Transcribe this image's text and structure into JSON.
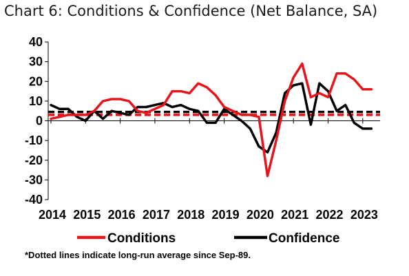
{
  "chart_data": {
    "type": "line",
    "title": "Chart 6: Conditions & Confidence (Net Balance, SA)",
    "footnote": "*Dotted lines indicate long-run average since Sep-89.",
    "ylim": [
      -40,
      40
    ],
    "yticks": [
      40,
      30,
      20,
      10,
      0,
      -10,
      -20,
      -30,
      -40
    ],
    "xlim": [
      2014,
      2023.5
    ],
    "xticks": [
      2014,
      2015,
      2016,
      2017,
      2018,
      2019,
      2020,
      2021,
      2022,
      2023
    ],
    "legend_position": "bottom",
    "grid": false,
    "series": [
      {
        "name": "Conditions",
        "color": "#e8141b",
        "x": [
          2014.0,
          2014.25,
          2014.5,
          2014.75,
          2015.0,
          2015.25,
          2015.5,
          2015.75,
          2016.0,
          2016.25,
          2016.5,
          2016.75,
          2017.0,
          2017.25,
          2017.5,
          2017.75,
          2018.0,
          2018.25,
          2018.5,
          2018.75,
          2019.0,
          2019.25,
          2019.5,
          2019.75,
          2020.0,
          2020.25,
          2020.5,
          2020.75,
          2021.0,
          2021.25,
          2021.5,
          2021.75,
          2022.0,
          2022.25,
          2022.5,
          2022.75,
          2023.0,
          2023.25
        ],
        "values": [
          1,
          2,
          3,
          3,
          3,
          5,
          10,
          11,
          11,
          10,
          5,
          4,
          6,
          8,
          15,
          15,
          14,
          19,
          17,
          13,
          7,
          5,
          3,
          3,
          2,
          -28,
          -10,
          10,
          22,
          29,
          12,
          14,
          12,
          24,
          24,
          21,
          16,
          16
        ]
      },
      {
        "name": "Confidence",
        "color": "#000000",
        "x": [
          2014.0,
          2014.25,
          2014.5,
          2014.75,
          2015.0,
          2015.25,
          2015.5,
          2015.75,
          2016.0,
          2016.25,
          2016.5,
          2016.75,
          2017.0,
          2017.25,
          2017.5,
          2017.75,
          2018.0,
          2018.25,
          2018.5,
          2018.75,
          2019.0,
          2019.25,
          2019.5,
          2019.75,
          2020.0,
          2020.25,
          2020.5,
          2020.75,
          2021.0,
          2021.25,
          2021.5,
          2021.75,
          2022.0,
          2022.25,
          2022.5,
          2022.75,
          2023.0,
          2023.25
        ],
        "values": [
          8,
          6,
          6,
          2,
          0,
          5,
          1,
          5,
          4,
          3,
          7,
          7,
          8,
          9,
          7,
          8,
          6,
          5,
          -1,
          -1,
          6,
          3,
          0,
          -4,
          -13,
          -16,
          -6,
          14,
          18,
          19,
          -2,
          19,
          15,
          5,
          8,
          -1,
          -4,
          -4
        ]
      }
    ],
    "reference_lines": [
      {
        "series": "Conditions",
        "value": 3,
        "color": "#e8141b",
        "style": "dotted"
      },
      {
        "series": "Confidence",
        "value": 4.5,
        "color": "#000000",
        "style": "dotted"
      }
    ]
  }
}
